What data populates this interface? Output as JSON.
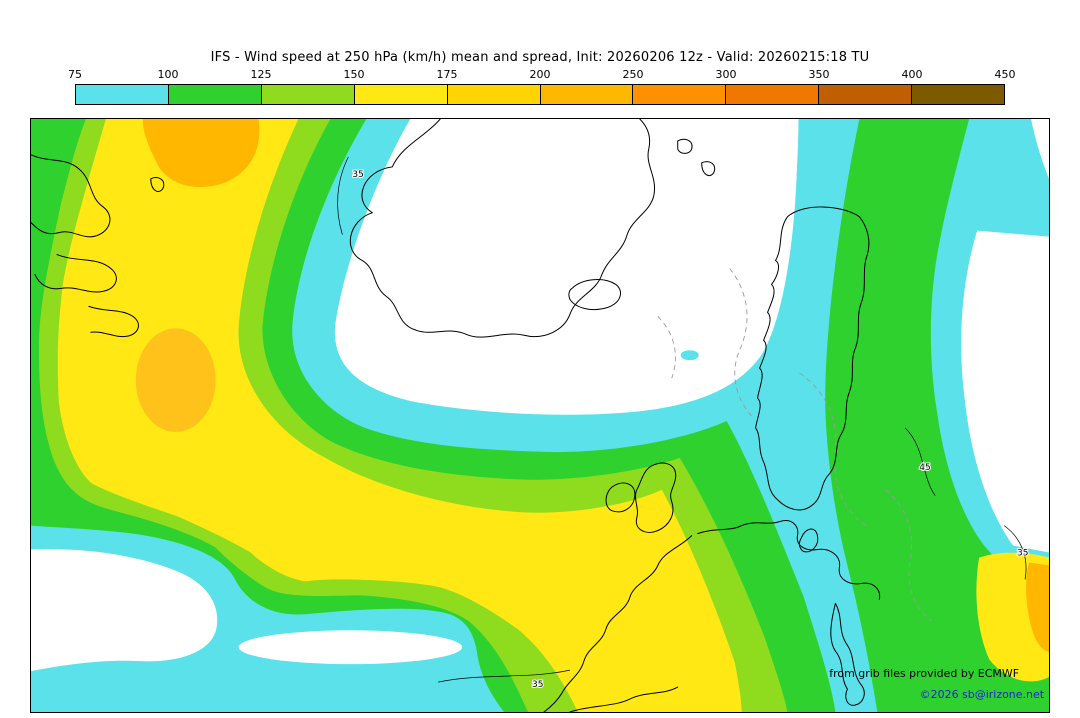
{
  "title": "IFS - Wind speed at 250 hPa (km/h) mean and spread, Init: 20260206 12z - Valid: 20260215:18 TU",
  "colorbar": {
    "tick_labels": [
      "75",
      "100",
      "125",
      "150",
      "175",
      "200",
      "250",
      "300",
      "350",
      "400",
      "450"
    ],
    "colors": [
      "#5BE1EA",
      "#2ED12E",
      "#8FDC1E",
      "#FFE814",
      "#FFD400",
      "#FFB700",
      "#FF9000",
      "#F07800",
      "#C05F00",
      "#7D5A00"
    ]
  },
  "map": {
    "contour_labels": [
      "35",
      "35",
      "45",
      "35"
    ],
    "attribution1": "from grib files provided by ECMWF",
    "attribution2": "©2026 sb@irizone.net"
  },
  "chart_data": {
    "type": "heatmap",
    "title": "IFS - Wind speed at 250 hPa (km/h) mean and spread, Init: 20260206 12z - Valid: 20260215:18 TU",
    "model": "IFS",
    "variable": "Wind speed at 250 hPa (km/h), mean and spread",
    "init": "20260206 12z",
    "valid": "20260215:18 TU",
    "legend_values_kmh": [
      75,
      100,
      125,
      150,
      175,
      200,
      250,
      300,
      350,
      400,
      450
    ],
    "legend_colors": [
      "#5BE1EA",
      "#2ED12E",
      "#8FDC1E",
      "#FFE814",
      "#FFD400",
      "#FFB700",
      "#FF9000",
      "#F07800",
      "#C05F00",
      "#7D5A00"
    ],
    "colorscale": [
      {
        "from": 75,
        "to": 100,
        "color": "#5BE1EA"
      },
      {
        "from": 100,
        "to": 125,
        "color": "#2ED12E"
      },
      {
        "from": 125,
        "to": 150,
        "color": "#8FDC1E"
      },
      {
        "from": 150,
        "to": 175,
        "color": "#FFE814"
      },
      {
        "from": 175,
        "to": 200,
        "color": "#FFD400"
      },
      {
        "from": 200,
        "to": 250,
        "color": "#FFB700"
      },
      {
        "from": 250,
        "to": 300,
        "color": "#FF9000"
      },
      {
        "from": 300,
        "to": 350,
        "color": "#F07800"
      },
      {
        "from": 350,
        "to": 400,
        "color": "#C05F00"
      },
      {
        "from": 400,
        "to": 450,
        "color": "#7D5A00"
      }
    ],
    "spread_contour_labels": [
      35,
      35,
      45,
      35
    ],
    "description": "Filled isotach field over the North Atlantic and Europe: a broad jet band (cyan-green-yellow, locally orange >200 km/h) sweeps from the northwest corner southeastward under a calm white tongue over Greenland/Scandinavia, with a second green band descending the eastern side and a yellow-orange maximum at the lower-right edge.",
    "attribution": [
      "from grib files provided by ECMWF",
      "©2026 sb@irizone.net"
    ]
  }
}
